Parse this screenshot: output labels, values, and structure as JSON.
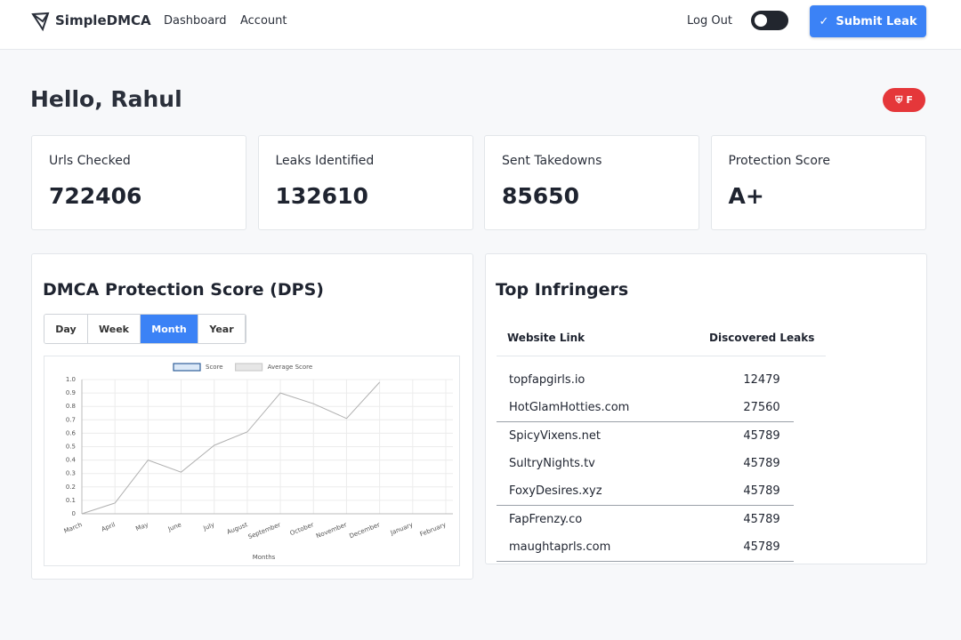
{
  "header": {
    "brand": "SimpleDMCA",
    "nav": [
      "Dashboard",
      "Account"
    ],
    "logout": "Log Out",
    "submit": "Submit Leak"
  },
  "greeting": "Hello, Rahul",
  "badge": "F",
  "stats": [
    {
      "label": "Urls Checked",
      "value": 722406
    },
    {
      "label": "Leaks Identified",
      "value": 132610
    },
    {
      "label": "Sent Takedowns",
      "value": 85650
    },
    {
      "label": "Protection Score",
      "value": "A+"
    }
  ],
  "tabs": [
    "Day",
    "Week",
    "Month",
    "Year"
  ],
  "active_tab": 2,
  "chart_data": {
    "type": "line",
    "title": "DMCA Protection Score (DPS)",
    "x_label": "Months",
    "categories": [
      "March",
      "April",
      "May",
      "June",
      "July",
      "August",
      "September",
      "October",
      "November",
      "December",
      "January",
      "February"
    ],
    "series": [
      {
        "name": "Score",
        "color": "#b0b0b0",
        "legend_fill": "#dbe8f7",
        "legend_stroke": "#2f5f9a",
        "values": [
          0,
          0.08,
          0.4,
          0.31,
          0.51,
          0.61,
          0.9,
          0.82,
          0.71,
          0.98,
          null,
          null
        ]
      },
      {
        "name": "Average Score",
        "color": "#cccccc",
        "legend_fill": "#e6e6e6",
        "legend_stroke": "#cccccc",
        "values": [
          null,
          null,
          null,
          null,
          null,
          null,
          null,
          null,
          null,
          null,
          null,
          null
        ]
      }
    ],
    "ylim": [
      0,
      1
    ],
    "yticks": [
      0,
      0.1,
      0.2,
      0.3,
      0.4,
      0.5,
      0.6,
      0.7,
      0.8,
      0.9,
      {
        "value": 1,
        "label": "1.0"
      }
    ],
    "grid": true,
    "legend": "top"
  },
  "table": {
    "title": "Top Infringers",
    "columns": [
      "Website Link",
      "Discovered Leaks"
    ],
    "rows": [
      [
        "topfapgirls.io",
        12479
      ],
      [
        "HotGlamHotties.com",
        27560
      ],
      [
        "SpicyVixens.net",
        45789
      ],
      [
        "SultryNights.tv",
        45789
      ],
      [
        "FoxyDesires.xyz",
        45789
      ],
      [
        "FapFrenzy.co",
        45789
      ],
      [
        "maughtaprls.com",
        45789
      ]
    ]
  }
}
